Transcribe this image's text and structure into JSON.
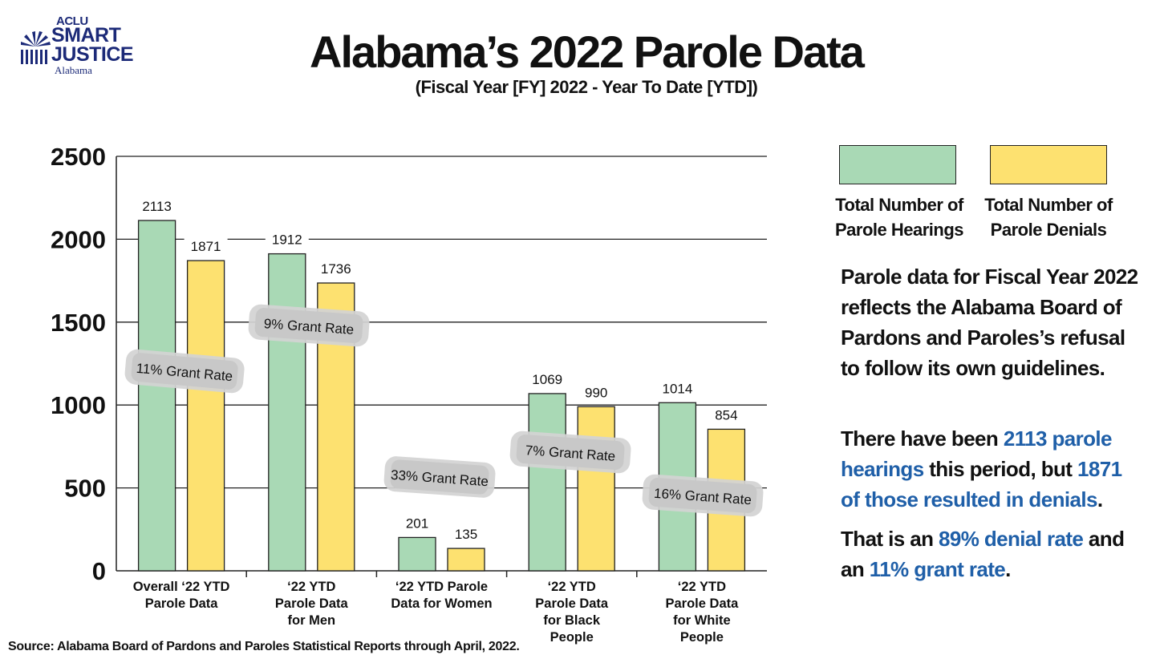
{
  "logo": {
    "org": "ACLU",
    "line1": "SMART",
    "line2": "JUSTICE",
    "state": "Alabama",
    "brand_color": "#1c2a78"
  },
  "header": {
    "title": "Alabama’s 2022 Parole Data",
    "subtitle": "(Fiscal Year [FY] 2022 - Year To Date [YTD])"
  },
  "legend": {
    "items": [
      {
        "label_line1": "Total Number of",
        "label_line2": "Parole Hearings",
        "color": "#a9d9b5"
      },
      {
        "label_line1": "Total Number of",
        "label_line2": "Parole Denials",
        "color": "#fde170"
      }
    ]
  },
  "chart_data": {
    "type": "bar",
    "categories": [
      [
        "Overall ‘22 YTD",
        "Parole Data"
      ],
      [
        "‘22 YTD",
        "Parole Data",
        "for Men"
      ],
      [
        "‘22 YTD  Parole",
        "Data for Women"
      ],
      [
        "‘22 YTD",
        "Parole Data",
        "for Black",
        "People"
      ],
      [
        "‘22 YTD",
        "Parole Data",
        "for White",
        "People"
      ]
    ],
    "series": [
      {
        "name": "Total Number of Parole Hearings",
        "color": "#a9d9b5",
        "values": [
          2113,
          1912,
          201,
          1069,
          1014
        ]
      },
      {
        "name": "Total Number of Parole Denials",
        "color": "#fde170",
        "values": [
          1871,
          1736,
          135,
          990,
          854
        ]
      }
    ],
    "annotations": [
      "11% Grant Rate",
      "9% Grant Rate",
      "33% Grant Rate",
      "7% Grant Rate",
      "16% Grant Rate"
    ],
    "yticks": [
      "0",
      "500",
      "1000",
      "1500",
      "2000",
      "2500"
    ],
    "ylim": [
      0,
      2500
    ],
    "grid": true,
    "legend_position": "top-right"
  },
  "summary": {
    "p1": "Parole data for Fiscal Year 2022 reflects the Alabama Board of Pardons and Paroles’s refusal to follow its own guidelines.",
    "p2_a": "There have been ",
    "p2_b": "2113 parole hearings",
    "p2_c": " this period, but ",
    "p2_d": "1871 of those resulted in denials",
    "p2_e": ".",
    "p3_a": "That is an ",
    "p3_b": "89% denial rate",
    "p3_c": " and an ",
    "p3_d": "11% grant rate",
    "p3_e": "."
  },
  "footer": {
    "source": "Source: Alabama Board of Pardons and Paroles Statistical Reports through April, 2022."
  }
}
